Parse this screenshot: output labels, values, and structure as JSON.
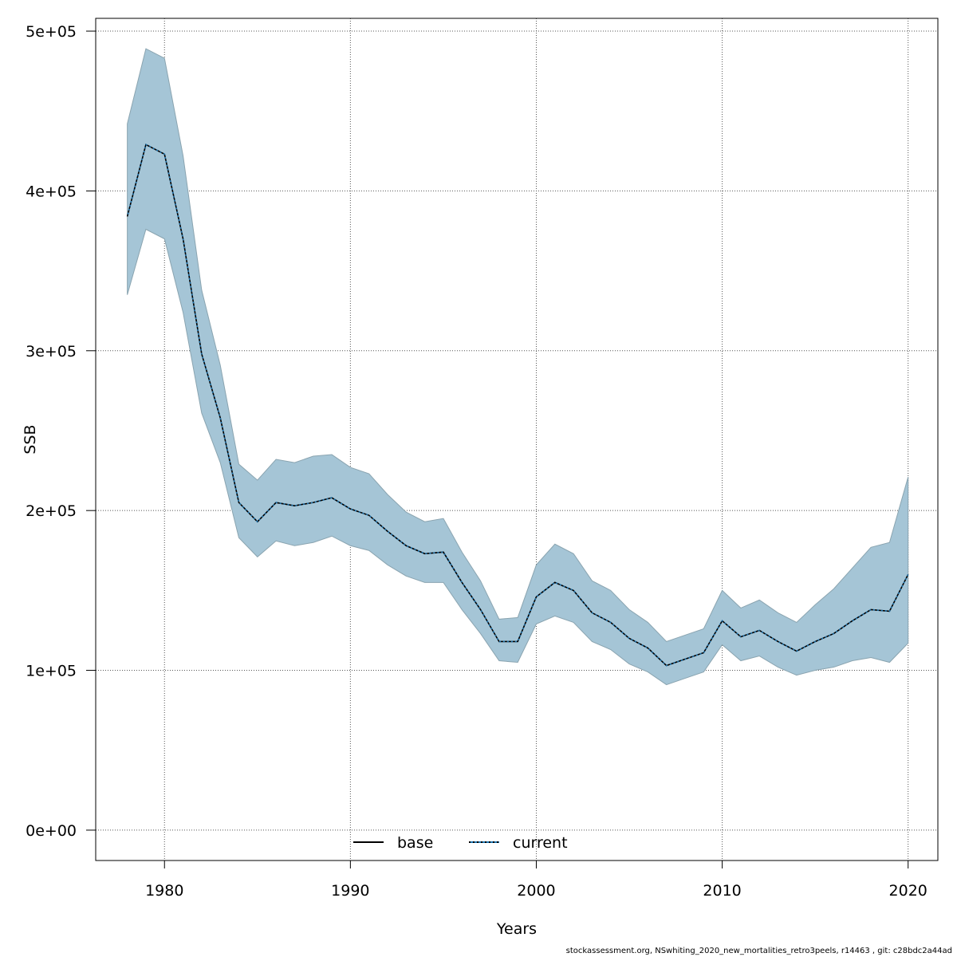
{
  "chart_data": {
    "type": "area",
    "xlabel": "Years",
    "ylabel": "SSB",
    "xlim": [
      1976.3,
      2021.6
    ],
    "ylim": [
      -19000,
      508000
    ],
    "x_ticks": [
      1980,
      1990,
      2000,
      2010,
      2020
    ],
    "x_tick_labels": [
      "1980",
      "1990",
      "2000",
      "2010",
      "2020"
    ],
    "y_ticks": [
      0,
      100000,
      200000,
      300000,
      400000,
      500000
    ],
    "y_tick_labels": [
      "0e+00",
      "1e+05",
      "2e+05",
      "3e+05",
      "4e+05",
      "5e+05"
    ],
    "grid": true,
    "legend_position": "bottom",
    "legend": [
      {
        "name": "base",
        "style": "solid"
      },
      {
        "name": "current",
        "style": "dotted"
      }
    ],
    "band_color": "#a5c5d6",
    "band_edge_color": "#8aa4b0",
    "years": [
      1978,
      1979,
      1980,
      1981,
      1982,
      1983,
      1984,
      1985,
      1986,
      1987,
      1988,
      1989,
      1990,
      1991,
      1992,
      1993,
      1994,
      1995,
      1996,
      1997,
      1998,
      1999,
      2000,
      2001,
      2002,
      2003,
      2004,
      2005,
      2006,
      2007,
      2008,
      2009,
      2010,
      2011,
      2012,
      2013,
      2014,
      2015,
      2016,
      2017,
      2018,
      2019,
      2020
    ],
    "ssb": [
      384000,
      429000,
      423000,
      370000,
      298000,
      258000,
      205000,
      193000,
      205000,
      203000,
      205000,
      208000,
      201000,
      197000,
      187000,
      178000,
      173000,
      174000,
      155000,
      138000,
      118000,
      118000,
      146000,
      155000,
      150000,
      136000,
      130000,
      120000,
      114000,
      103000,
      107000,
      111000,
      131000,
      121000,
      125000,
      118000,
      112000,
      118000,
      123000,
      131000,
      138000,
      137000,
      160000
    ],
    "upper": [
      442000,
      489000,
      483000,
      422000,
      338000,
      291000,
      229000,
      219000,
      232000,
      230000,
      234000,
      235000,
      227000,
      223000,
      210000,
      199000,
      193000,
      195000,
      174000,
      156000,
      132000,
      133000,
      166000,
      179000,
      173000,
      156000,
      150000,
      138000,
      130000,
      118000,
      122000,
      126000,
      150000,
      139000,
      144000,
      136000,
      130000,
      141000,
      151000,
      164000,
      177000,
      180000,
      221000
    ],
    "lower": [
      335000,
      376000,
      370000,
      324000,
      261000,
      230000,
      183000,
      171000,
      181000,
      178000,
      180000,
      184000,
      178000,
      175000,
      166000,
      159000,
      155000,
      155000,
      138000,
      123000,
      106000,
      105000,
      129000,
      134000,
      130000,
      118000,
      113000,
      104000,
      99000,
      91000,
      95000,
      99000,
      116000,
      106000,
      109000,
      102000,
      97000,
      100000,
      102000,
      106000,
      108000,
      105000,
      117000
    ]
  },
  "footer_text": "stockassessment.org, NSwhiting_2020_new_mortalities_retro3peels, r14463 , git: c28bdc2a44ad"
}
